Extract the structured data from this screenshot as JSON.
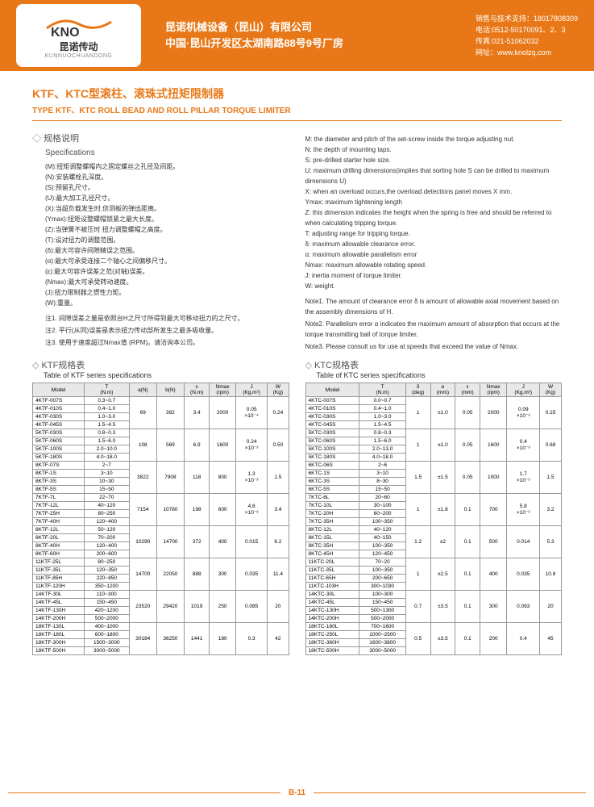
{
  "logo": {
    "brand": "KNO",
    "cn": "昆诺传动",
    "sub": "KUNNUOCHUANDONG"
  },
  "company": {
    "l1": "昆诺机械设备（昆山）有限公司",
    "l2": "中国·昆山开发区太湖南路88号9号厂房"
  },
  "contact": {
    "l1": "销售与技术支持：18017808309",
    "l2": "电话:0512-50170091、2、3",
    "l3": "传真:021-51062032",
    "l4": "网址：www.knolzq.com"
  },
  "title": {
    "cn": "KTF、KTC型滚柱、滚珠式扭矩限制器",
    "en": "TYPE KTF、KTC ROLL BEAD AND ROLL PILLAR TORQUE LIMITER"
  },
  "spec": {
    "hdr_cn": "规格说明",
    "hdr_en": "Specifications",
    "left": [
      "(M):扭矩调整螺帽内之固定螺丝之孔径及间距。",
      "(N):安装螺栓孔深度。",
      "(S):预留孔尺寸。",
      "(U):最大加工孔径尺寸。",
      "(X):当超负载发生时,侦测板的弹出距离。",
      "(Ymax):扭矩设整螺帽锁紧之最大长度。",
      "(Z):当弹簧不被压时 扭力调整螺帽之高度。",
      "(T):设对扭力的调整范围。",
      "(δ):最大可容许间隙精误之范围。",
      "(α):最大可承受连接二个轴心之间偏移尺寸。",
      "(ε):最大可容许误差之范(对轴)误差。",
      "(Nmax):最大可承受转动速度。",
      "(J):扭力限制器之惯性力矩。",
      "(W):重量。"
    ],
    "left_notes": [
      "注1. 间隙误差之量是依照台H之尺寸所得到最大可移动扭力的之尺寸。",
      "注2. 平行(从同)误差是表示扭力传动部所发生之最多吸收量。",
      "注3. 使用于速度超过Nmax值 (RPM)。请洽询本公司。"
    ],
    "right": [
      "M: the diameter and pitch of the set-screw inside the torque adjusting nut.",
      "N: the depth of mounting taps.",
      "S: pre-drilled starter hole size.",
      "U: maximum drilling dimensions(implies that sorting hole S can be drilled to maximum dimensions U)",
      "X: when an overload occurs,the overload detections panel moves X mm.",
      "Ymax: maximum tightening length",
      "Z: this dimension indicates the height when the spring is free and should be referred to when calculating tripping torque.",
      "T: adjusting range for tripping torque.",
      "δ: maximum allowable clearance error.",
      "α: maximum allowable parallelism error",
      "Nmax: maximum allowable rotating speed.",
      "J: inertia moment of torque limiter.",
      "W: weight."
    ],
    "right_notes": [
      "Note1. The amount of clearance error δ is amount of allowable axial movement based on the assembly dimensions of H.",
      "Note2. Parallelism error α indicates the maximum amount of absorption that occurs at the torque transmitting ball of torque limiter.",
      "Note3. Please consult us for use at speeds that exceed the value of Nmax."
    ]
  },
  "ktf": {
    "hdr_cn": "KTF规格表",
    "hdr_en": "Table of KTF series specifications",
    "cols": [
      "Model",
      "T\n(N.m)",
      "a(N)",
      "b(N)",
      "c\n(N.m)",
      "Nmax\n(rpm)",
      "J\n(Kg.m²)",
      "W\n(Kg)"
    ],
    "groups": [
      {
        "models": [
          "4KTF-007S",
          "4KTF-010S",
          "4KTF-030S",
          "4KTF-045S"
        ],
        "t": [
          "0.3~0.7",
          "0.4~1.0",
          "1.0~3.0",
          "1.5~4.5"
        ],
        "a": "69",
        "b": "392",
        "c": "3.4",
        "n": "2000",
        "j": "0.05\n×10⁻⁴",
        "w": "0.24"
      },
      {
        "models": [
          "5KTF-030S",
          "5KTF-060S",
          "5KTF-100S",
          "5KTF-180S"
        ],
        "t": [
          "0.8~0.3",
          "1.5~6.0",
          "2.0~10.0",
          "4.0~18.0"
        ],
        "a": "108",
        "b": "569",
        "c": "6.9",
        "n": "1600",
        "j": "0.24\n×10⁻³",
        "w": "0.50"
      },
      {
        "models": [
          "8KTF-07S",
          "8KTF-1S",
          "8KTF-3S",
          "8KTF-5S"
        ],
        "t": [
          "2~7",
          "3~10",
          "10~30",
          "15~50"
        ],
        "a": "3822",
        "b": "7908",
        "c": "118",
        "n": "800",
        "j": "1.3\n×10⁻³",
        "w": "1.5"
      },
      {
        "models": [
          "7KTF-7L",
          "7KTF-12L",
          "7KTF-25H",
          "7KTF-40H"
        ],
        "t": [
          "22~70",
          "40~120",
          "80~250",
          "120~400"
        ],
        "a": "7154",
        "b": "10780",
        "c": "198",
        "n": "600",
        "j": "4.8\n×10⁻³",
        "w": "3.4"
      },
      {
        "models": [
          "8KTF-12L",
          "8KTF-20L",
          "8KTF-40H",
          "8KTF-60H"
        ],
        "t": [
          "50~120",
          "70~200",
          "120~400",
          "200~600"
        ],
        "a": "10290",
        "b": "14700",
        "c": "372",
        "n": "400",
        "j": "0.015",
        "w": "6.2"
      },
      {
        "models": [
          "11KTF-25L",
          "11KTF-35L",
          "11KTF-85H",
          "11KTF-120H"
        ],
        "t": [
          "80~250",
          "120~350",
          "220~850",
          "350~1200"
        ],
        "a": "14700",
        "b": "22050",
        "c": "888",
        "n": "300",
        "j": "0.035",
        "w": "11.4"
      },
      {
        "models": [
          "14KTF-30L",
          "14KTF-45L",
          "14KTF-130H",
          "14KTF-200H"
        ],
        "t": [
          "110~300",
          "150~450",
          "420~1200",
          "500~2000"
        ],
        "a": "23520",
        "b": "29420",
        "c": "1019",
        "n": "250",
        "j": "0.085",
        "w": "20"
      },
      {
        "models": [
          "18KTF-130L",
          "18KTF-180L",
          "18KTF-300H",
          "18KTF-500H"
        ],
        "t": [
          "400~1000",
          "600~1800",
          "1500~3000",
          "3000~5000"
        ],
        "a": "30184",
        "b": "36250",
        "c": "1441",
        "n": "180",
        "j": "0.3",
        "w": "42"
      }
    ]
  },
  "ktc": {
    "hdr_cn": "KTC规格表",
    "hdr_en": "Table of KTC series specifications",
    "cols": [
      "Model",
      "T\n(N.m)",
      "δ\n(deg)",
      "α\n(mm)",
      "ε\n(mm)",
      "Nmax\n(rpm)",
      "J\n(Kg.m²)",
      "W\n(Kg)"
    ],
    "groups": [
      {
        "models": [
          "4KTC-007S",
          "4KTC-010S",
          "4KTC-030S",
          "4KTC-045S"
        ],
        "t": [
          "0.0~0.7",
          "0.4~1.0",
          "1.0~3.0",
          "1.5~4.5"
        ],
        "d": "1",
        "a": "±1.0",
        "e": "0.05",
        "n": "2000",
        "j": "0.09\n×10⁻³",
        "w": "0.25"
      },
      {
        "models": [
          "5KTC-030S",
          "5KTC-060S",
          "5KTC-100S",
          "5KTC-180S"
        ],
        "t": [
          "0.8~0.3",
          "1.5~6.0",
          "2.0~13.0",
          "4.0~18.0"
        ],
        "d": "1",
        "a": "±1.0",
        "e": "0.05",
        "n": "1600",
        "j": "0.4\n×10⁻³",
        "w": "0.68"
      },
      {
        "models": [
          "6KTC-06S",
          "6KTC-1S",
          "6KTC-3S",
          "6KTC-5S"
        ],
        "t": [
          "2~6",
          "3~10",
          "8~30",
          "15~50"
        ],
        "d": "1.5",
        "a": "±1.5",
        "e": "0.05",
        "n": "1000",
        "j": "1.7\n×10⁻³",
        "w": "1.5"
      },
      {
        "models": [
          "7KTC-6L",
          "7KTC-10L",
          "7KTC-20H",
          "7KTC-35H"
        ],
        "t": [
          "20~60",
          "30~100",
          "60~200",
          "100~350"
        ],
        "d": "1",
        "a": "±1.8",
        "e": "0.1",
        "n": "700",
        "j": "5.8\n×10⁻³",
        "w": "3.2"
      },
      {
        "models": [
          "8KTC-12L",
          "8KTC-15L",
          "8KTC-35H",
          "8KTC-45H"
        ],
        "t": [
          "40~120",
          "40~150",
          "100~350",
          "120~450"
        ],
        "d": "1.2",
        "a": "±2",
        "e": "0.1",
        "n": "500",
        "j": "0.014",
        "w": "5.3"
      },
      {
        "models": [
          "11KTC-20L",
          "11KTC-35L",
          "11KTC-65H",
          "11KTC-103H"
        ],
        "t": [
          "70~20",
          "100~350",
          "200~650",
          "300~1030"
        ],
        "d": "1",
        "a": "±2.5",
        "e": "0.1",
        "n": "400",
        "j": "0.035",
        "w": "10.8"
      },
      {
        "models": [
          "14KTC-30L",
          "14KTC-45L",
          "14KTC-130H",
          "14KTC-200H"
        ],
        "t": [
          "100~300",
          "150~450",
          "500~1300",
          "500~2000"
        ],
        "d": "0.7",
        "a": "±3.5",
        "e": "0.1",
        "n": "300",
        "j": "0.093",
        "w": "20"
      },
      {
        "models": [
          "18KTC-160L",
          "18KTC-250L",
          "18KTC-360H",
          "18KTC-500H"
        ],
        "t": [
          "700~1600",
          "1000~2500",
          "1600~3800",
          "3000~5000"
        ],
        "d": "0.5",
        "a": "±3.5",
        "e": "0.1",
        "n": "200",
        "j": "0.4",
        "w": "45"
      }
    ]
  },
  "page_num": "B-11"
}
